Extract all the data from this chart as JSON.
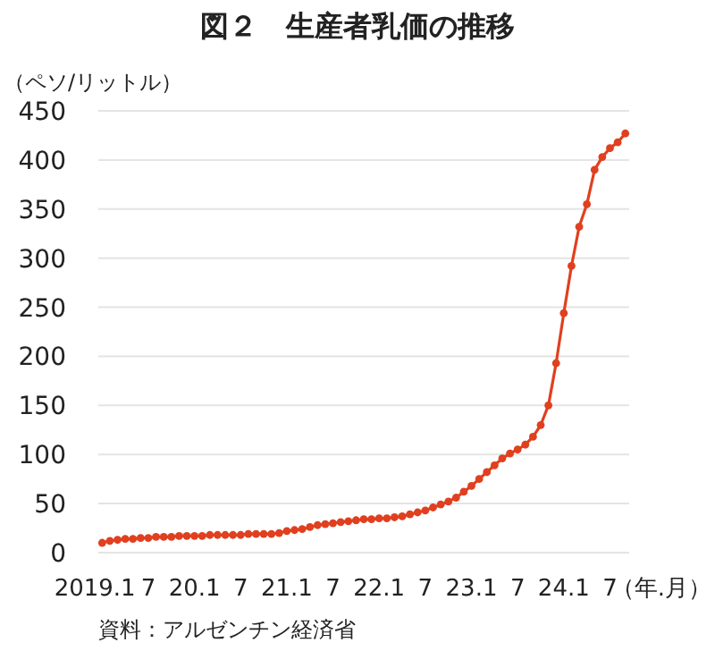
{
  "chart_data": {
    "type": "line",
    "title": "図２　生産者乳価の推移",
    "ylabel": "（ペソ/リットル）",
    "xlabel": "（年.月）",
    "annotations": [
      "資料：アルゼンチン経済省"
    ],
    "categories": [
      "2019.1",
      null,
      null,
      null,
      null,
      null,
      "7",
      null,
      null,
      null,
      null,
      null,
      "20.1",
      null,
      null,
      null,
      null,
      null,
      "7",
      null,
      null,
      null,
      null,
      null,
      "21.1",
      null,
      null,
      null,
      null,
      null,
      "7",
      null,
      null,
      null,
      null,
      null,
      "22.1",
      null,
      null,
      null,
      null,
      null,
      "7",
      null,
      null,
      null,
      null,
      null,
      "23.1",
      null,
      null,
      null,
      null,
      null,
      "7",
      null,
      null,
      null,
      null,
      null,
      "24.1",
      null,
      null,
      null,
      null,
      null,
      "7",
      null,
      null
    ],
    "series": [
      {
        "color": "#e0401f",
        "values": [
          10,
          12,
          13,
          14,
          14,
          15,
          15,
          16,
          16,
          16,
          17,
          17,
          17,
          17,
          18,
          18,
          18,
          18,
          18,
          19,
          19,
          19,
          19,
          20,
          22,
          23,
          24,
          26,
          28,
          29,
          30,
          31,
          32,
          33,
          34,
          34,
          35,
          35,
          36,
          37,
          39,
          41,
          43,
          46,
          49,
          52,
          56,
          62,
          68,
          75,
          82,
          89,
          96,
          101,
          105,
          110,
          118,
          130,
          150,
          193,
          244,
          292,
          332,
          355,
          390,
          403,
          412,
          418,
          427
        ]
      }
    ],
    "ylim": [
      0,
      450
    ],
    "yticks": [
      0,
      50,
      100,
      150,
      200,
      250,
      300,
      350,
      400,
      450
    ],
    "grid": "y",
    "marker": "circle",
    "line_style": "solid"
  }
}
